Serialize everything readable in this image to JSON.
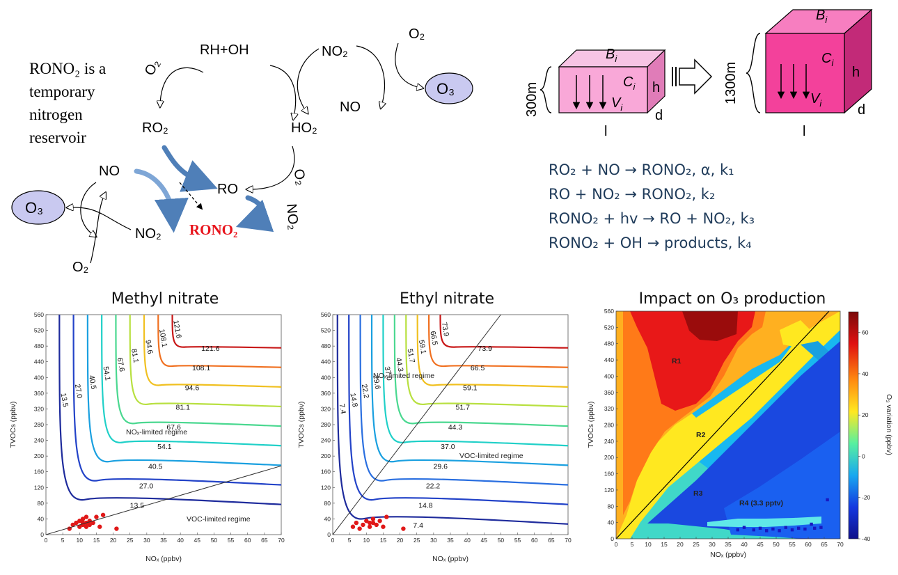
{
  "mechanism": {
    "note_lines": [
      "RONO₂ is a",
      "temporary",
      "nitrogen",
      "reservoir"
    ],
    "note_color": "#3a6db2",
    "species": {
      "rh_oh": "RH+OH",
      "o2_top_left": "O₂",
      "no2_top": "NO₂",
      "o2_top_right": "O₂",
      "o3_top": "O₃",
      "no_top": "NO",
      "ro2": "RO₂",
      "ho2": "HO₂",
      "o2_mid": "O₂",
      "no_left": "NO",
      "ro": "RO",
      "o3_left": "O₃",
      "no2_left": "NO₂",
      "rono2": "RONO₂",
      "no2_right": "NO₂",
      "o2_bottom": "O₂"
    },
    "rono2_color": "#e8141c",
    "o3_ellipse_color": "#c9c9f0"
  },
  "box_model": {
    "small_box": {
      "height_label": "300m",
      "top": "Bi",
      "conc": "Ci",
      "vel": "Vi",
      "h": "h",
      "d": "d",
      "l": "l",
      "color": "#f9a8d8"
    },
    "large_box": {
      "height_label": "1300m",
      "top": "Bi",
      "conc": "Ci",
      "vel": "Vi",
      "h": "h",
      "d": "d",
      "l": "l",
      "color": "#f3419b"
    }
  },
  "equations": [
    "RO₂ + NO → RONO₂, α, k₁",
    "RO + NO₂ → RONO₂, k₂",
    "RONO₂ + hv → RO + NO₂, k₃",
    "RONO₂ + OH → products, k₄"
  ],
  "panels": {
    "methyl": {
      "title": "Methyl nitrate",
      "xlabel": "NOₓ (ppbv)",
      "ylabel": "TVOCs (ppbv)",
      "regime_top": "NOₓ-limited regime",
      "regime_bottom": "VOC-limited regime"
    },
    "ethyl": {
      "title": "Ethyl nitrate",
      "xlabel": "NOₓ (ppbv)",
      "ylabel": "TVOCs (ppbv)",
      "regime_top": "NOₓ-limited regime",
      "regime_bottom": "VOC-limited regime"
    },
    "impact": {
      "title": "Impact on O₃ production",
      "xlabel": "NOₓ (ppbv)",
      "ylabel": "TVOCs (ppbv)",
      "colorbar_label": "O₃ variation (ppbv)",
      "regions": [
        "R1",
        "R2",
        "R3",
        "R4 (3.3 pptv)"
      ]
    }
  },
  "chart_data": [
    {
      "type": "contour",
      "title": "Methyl nitrate",
      "xlabel": "NOₓ (ppbv)",
      "ylabel": "TVOCs (ppbv)",
      "xlim": [
        0,
        70
      ],
      "ylim": [
        0,
        560
      ],
      "xticks": [
        "0",
        "5",
        "10",
        "15",
        "20",
        "25",
        "30",
        "35",
        "40",
        "45",
        "50",
        "55",
        "60",
        "65",
        "70"
      ],
      "yticks": [
        "0",
        "40",
        "80",
        "120",
        "160",
        "200",
        "240",
        "280",
        "320",
        "360",
        "400",
        "440",
        "480",
        "520",
        "560"
      ],
      "contour_levels": [
        "13.5",
        "27.0",
        "40.5",
        "54.1",
        "67.6",
        "81.1",
        "94.6",
        "108.1",
        "121.6"
      ],
      "level_colors": [
        "#1e2b9c",
        "#2343c8",
        "#1aa0e0",
        "#20d0c8",
        "#4ad890",
        "#b8e040",
        "#f0c020",
        "#f07020",
        "#c81818"
      ],
      "extra_labels": [
        "13.5",
        "13.5",
        "13.5",
        "27.0",
        "27.0",
        "27.0",
        "40.5",
        "40.5",
        "54.1",
        "54.1",
        "67.6",
        "81.1",
        "94.6",
        "108.1",
        "121.6"
      ],
      "scatter_points": [
        [
          7,
          15
        ],
        [
          8,
          25
        ],
        [
          9,
          30
        ],
        [
          10,
          20
        ],
        [
          10,
          35
        ],
        [
          11,
          25
        ],
        [
          11,
          40
        ],
        [
          12,
          30
        ],
        [
          12,
          20
        ],
        [
          13,
          35
        ],
        [
          13,
          25
        ],
        [
          14,
          30
        ],
        [
          15,
          45
        ],
        [
          16,
          20
        ],
        [
          17,
          50
        ],
        [
          21,
          15
        ],
        [
          11,
          30
        ],
        [
          12,
          45
        ]
      ],
      "regime_line": [
        [
          0,
          0
        ],
        [
          70,
          175
        ]
      ]
    },
    {
      "type": "contour",
      "title": "Ethyl nitrate",
      "xlabel": "NOₓ (ppbv)",
      "ylabel": "TVOCs (ppbv)",
      "xlim": [
        0,
        70
      ],
      "ylim": [
        0,
        560
      ],
      "xticks": [
        "0",
        "5",
        "10",
        "15",
        "20",
        "25",
        "30",
        "35",
        "40",
        "45",
        "50",
        "55",
        "60",
        "65",
        "70"
      ],
      "yticks": [
        "0",
        "40",
        "80",
        "120",
        "160",
        "200",
        "240",
        "280",
        "320",
        "360",
        "400",
        "440",
        "480",
        "520",
        "560"
      ],
      "contour_levels": [
        "7.4",
        "14.8",
        "22.2",
        "29.6",
        "37.0",
        "44.3",
        "51.7",
        "59.1",
        "66.5",
        "73.9"
      ],
      "level_colors": [
        "#1e2b9c",
        "#2343c8",
        "#2a6fe0",
        "#1aa0e0",
        "#20d0c8",
        "#4ad890",
        "#b8e040",
        "#f0c020",
        "#f07020",
        "#c81818"
      ],
      "scatter_points": [
        [
          6,
          20
        ],
        [
          7,
          30
        ],
        [
          8,
          15
        ],
        [
          9,
          25
        ],
        [
          10,
          35
        ],
        [
          11,
          20
        ],
        [
          12,
          30
        ],
        [
          12,
          40
        ],
        [
          13,
          25
        ],
        [
          14,
          35
        ],
        [
          15,
          20
        ],
        [
          16,
          45
        ],
        [
          21,
          15
        ],
        [
          11,
          30
        ]
      ],
      "regime_line": [
        [
          0,
          0
        ],
        [
          50,
          560
        ]
      ]
    },
    {
      "type": "heatmap",
      "title": "Impact on O₃ production",
      "xlabel": "NOₓ (ppbv)",
      "ylabel": "TVOCs (ppbv)",
      "colorbar_label": "O₃ variation (ppbv)",
      "xlim": [
        0,
        70
      ],
      "ylim": [
        0,
        560
      ],
      "xticks": [
        "0",
        "5",
        "10",
        "15",
        "20",
        "25",
        "30",
        "35",
        "40",
        "45",
        "50",
        "55",
        "60",
        "65",
        "70"
      ],
      "yticks": [
        "0",
        "40",
        "80",
        "120",
        "160",
        "200",
        "240",
        "280",
        "320",
        "360",
        "400",
        "440",
        "480",
        "520",
        "560"
      ],
      "colorbar_ticks": [
        "60",
        "40",
        "20",
        "0",
        "-20",
        "-40"
      ],
      "colorbar_range": [
        -40,
        70
      ],
      "regions": [
        "R1",
        "R2",
        "R3",
        "R4 (3.3 pptv)"
      ]
    }
  ]
}
